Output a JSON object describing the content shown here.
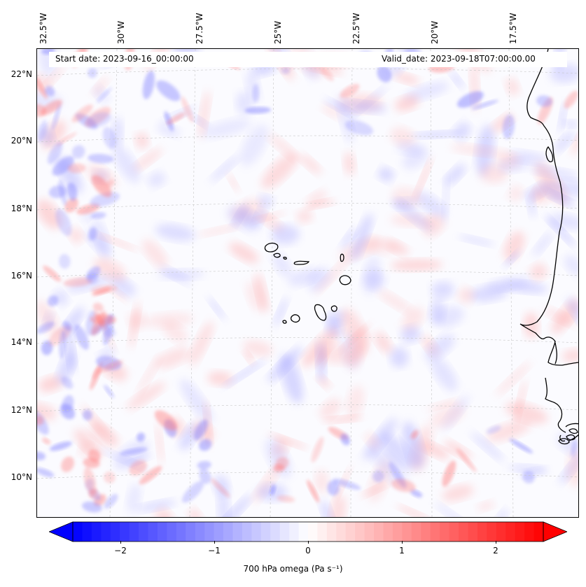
{
  "header": {
    "start_date": "Start date: 2023-09-16_00:00:00",
    "valid_date": "Valid_date: 2023-09-18T07:00:00.00"
  },
  "axes": {
    "lon_ticks": [
      "32.5°W",
      "30°W",
      "27.5°W",
      "25°W",
      "22.5°W",
      "20°W",
      "17.5°W"
    ],
    "lat_ticks": [
      "22°N",
      "20°N",
      "18°N",
      "16°N",
      "14°N",
      "12°N",
      "10°N"
    ]
  },
  "colorbar": {
    "label": "700 hPa omega (Pa s⁻¹)",
    "ticks": [
      "−2",
      "−1",
      "0",
      "1",
      "2"
    ],
    "min": -2.5,
    "max": 2.5,
    "extend": "both",
    "colormap": "bwr",
    "neg_color": "#0000ff",
    "mid_color": "#ffffff",
    "pos_color": "#ff0000"
  },
  "map": {
    "variable": "700 hPa omega",
    "coastline_color": "#000000",
    "gridline_style": "dashed light gray"
  }
}
